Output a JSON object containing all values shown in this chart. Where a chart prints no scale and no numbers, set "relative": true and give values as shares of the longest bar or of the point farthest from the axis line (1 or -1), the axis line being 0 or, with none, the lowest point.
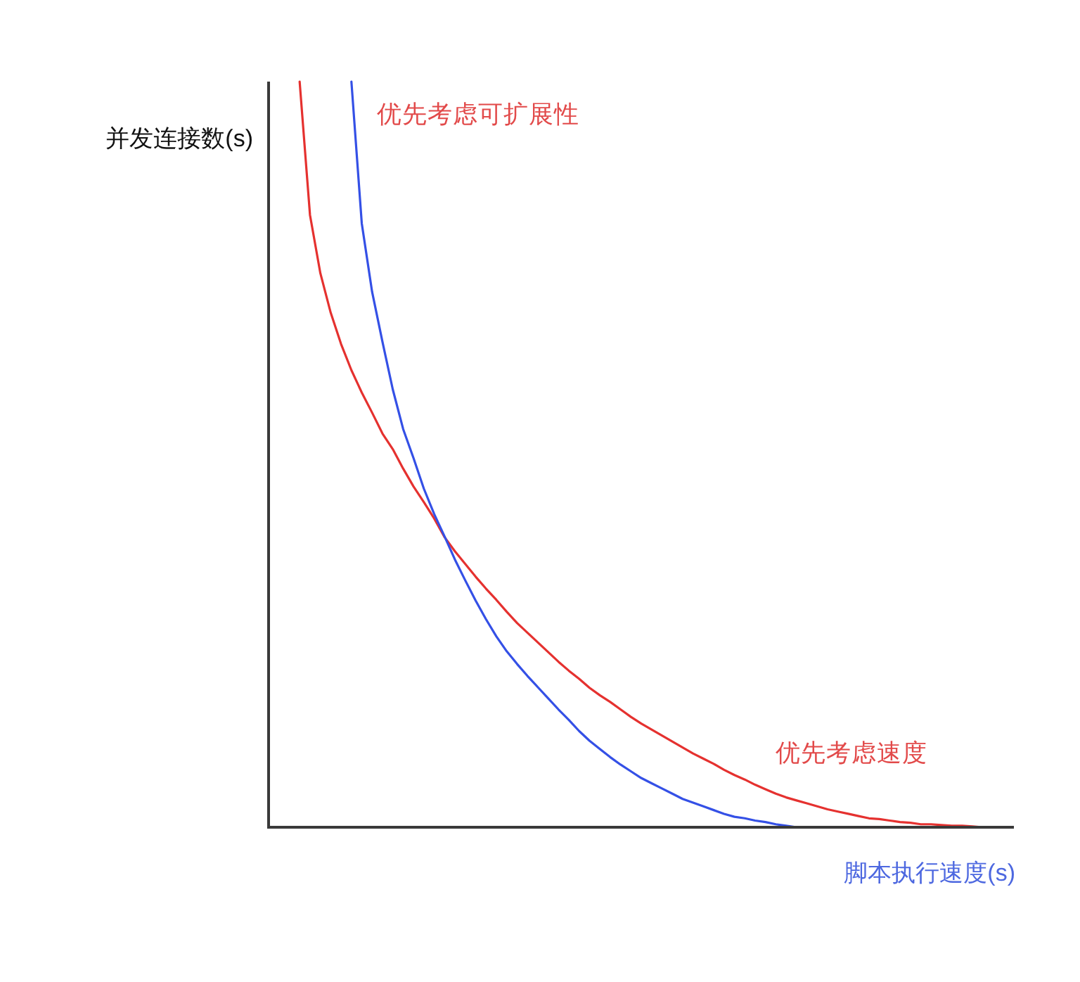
{
  "chart_data": {
    "type": "line",
    "relative": true,
    "xlabel": "脚本执行速度(s)",
    "ylabel": "并发连接数(s)",
    "categories": [
      null,
      null,
      null,
      null,
      null,
      null,
      null,
      null,
      null,
      null,
      null,
      null,
      null,
      null,
      null,
      null,
      null,
      null,
      null,
      null,
      null,
      null,
      null,
      null,
      null,
      null,
      null,
      null,
      null,
      null,
      null,
      null,
      null,
      null,
      null,
      null,
      null,
      null,
      null,
      null,
      null,
      null,
      null,
      null,
      null,
      null,
      null,
      null,
      null,
      null,
      null,
      null,
      null,
      null,
      null,
      null,
      null,
      null,
      null,
      null,
      null,
      null,
      null,
      null,
      null,
      null,
      null,
      null,
      null,
      null,
      null,
      null,
      null
    ],
    "series": [
      {
        "name": "优先考虑速度",
        "color": "#e5312f",
        "values": [
          null,
          null,
          null,
          1.0,
          0.821,
          0.743,
          0.69,
          0.648,
          0.613,
          0.583,
          0.556,
          0.528,
          0.507,
          0.481,
          0.457,
          0.436,
          0.414,
          0.389,
          0.37,
          0.353,
          0.336,
          0.32,
          0.305,
          0.289,
          0.274,
          0.261,
          0.248,
          0.235,
          0.222,
          0.21,
          0.199,
          0.187,
          0.177,
          0.168,
          0.158,
          0.148,
          0.139,
          0.131,
          0.123,
          0.115,
          0.107,
          0.099,
          0.092,
          0.085,
          0.077,
          0.07,
          0.064,
          0.057,
          0.051,
          0.045,
          0.04,
          0.036,
          0.032,
          0.028,
          0.024,
          0.021,
          0.018,
          0.015,
          0.012,
          0.011,
          0.009,
          0.007,
          0.006,
          0.004,
          0.004,
          0.003,
          0.002,
          0.002,
          0.001,
          0,
          0,
          null,
          null
        ]
      },
      {
        "name": "优先考虑可扩展性",
        "color": "#3450e6",
        "values": [
          null,
          null,
          null,
          null,
          null,
          null,
          null,
          null,
          1.0,
          0.81,
          0.718,
          0.651,
          0.587,
          0.534,
          0.495,
          0.454,
          0.42,
          0.39,
          0.359,
          0.331,
          0.304,
          0.279,
          0.256,
          0.236,
          0.219,
          0.203,
          0.188,
          0.173,
          0.158,
          0.144,
          0.129,
          0.116,
          0.105,
          0.094,
          0.084,
          0.075,
          0.066,
          0.059,
          0.052,
          0.045,
          0.038,
          0.033,
          0.028,
          0.023,
          0.018,
          0.014,
          0.012,
          0.009,
          0.007,
          0.004,
          0.002,
          0,
          null,
          null,
          null,
          null,
          null,
          null,
          null,
          null,
          null,
          null,
          null,
          null,
          null,
          null,
          null,
          null,
          null,
          null,
          null,
          null,
          null
        ]
      }
    ]
  }
}
